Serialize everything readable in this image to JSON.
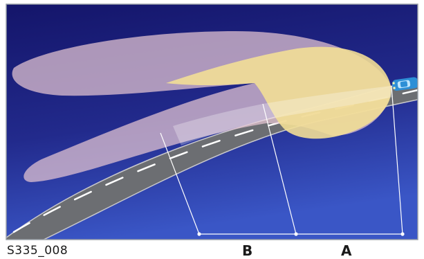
{
  "figure": {
    "id_label": "S335_008",
    "label_b": "B",
    "label_a": "A"
  },
  "colors": {
    "frame": "#9aa0a8",
    "sky_top": "#14156a",
    "sky_bottom": "#3a52c0",
    "road": "#6c6e72",
    "road_edge": "#d9d9dc",
    "lane_marking": "#ffffff",
    "high_beam_cone": "#c9a9b8",
    "low_beam_cone": "#f0dd9a",
    "car": "#2d8fd6",
    "dimension_lines": "#ffffff"
  },
  "icons": {
    "vehicle": "car-icon"
  }
}
